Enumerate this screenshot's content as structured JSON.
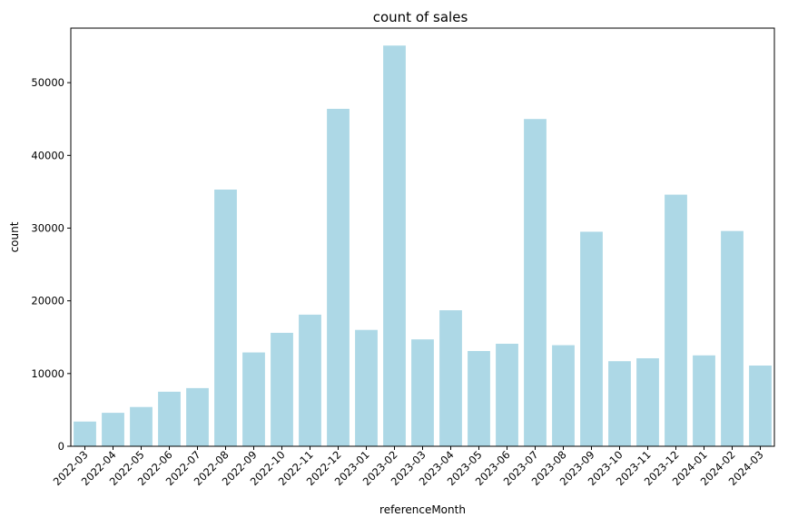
{
  "chart_data": {
    "type": "bar",
    "title": "count of sales",
    "xlabel": "referenceMonth",
    "ylabel": "count",
    "ylim": [
      0,
      57500
    ],
    "yticks": [
      0,
      10000,
      20000,
      30000,
      40000,
      50000
    ],
    "grid": false,
    "bar_color": "#add8e6",
    "categories": [
      "2022-03",
      "2022-04",
      "2022-05",
      "2022-06",
      "2022-07",
      "2022-08",
      "2022-09",
      "2022-10",
      "2022-11",
      "2022-12",
      "2023-01",
      "2023-02",
      "2023-03",
      "2023-04",
      "2023-05",
      "2023-06",
      "2023-07",
      "2023-08",
      "2023-09",
      "2023-10",
      "2023-11",
      "2023-12",
      "2024-01",
      "2024-02",
      "2024-03"
    ],
    "values": [
      3400,
      4600,
      5400,
      7500,
      8000,
      35300,
      12900,
      15600,
      18100,
      46400,
      16000,
      55100,
      14700,
      18700,
      13100,
      14100,
      45000,
      13900,
      29500,
      11700,
      12100,
      34600,
      12500,
      29600,
      11100
    ]
  }
}
